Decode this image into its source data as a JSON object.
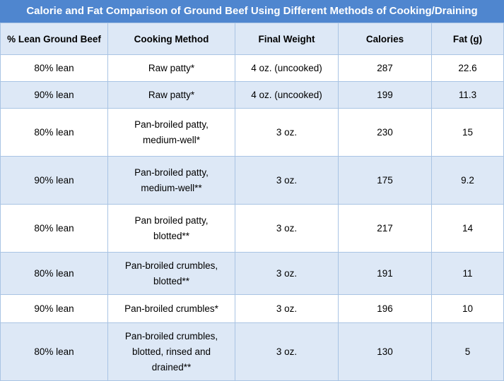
{
  "title": "Calorie and Fat Comparison of Ground Beef Using Different Methods of Cooking/Draining",
  "headers": [
    "% Lean Ground Beef",
    "Cooking Method",
    "Final Weight",
    "Calories",
    "Fat (g)"
  ],
  "rows": [
    {
      "lean": "80% lean",
      "method": [
        "Raw patty*"
      ],
      "weight": "4 oz. (uncooked)",
      "calories": "287",
      "fat": "22.6"
    },
    {
      "lean": "90% lean",
      "method": [
        "Raw patty*"
      ],
      "weight": "4 oz. (uncooked)",
      "calories": "199",
      "fat": "11.3"
    },
    {
      "lean": "80% lean",
      "method": [
        "Pan-broiled patty,",
        "medium-well*"
      ],
      "weight": "3 oz.",
      "calories": "230",
      "fat": "15"
    },
    {
      "lean": "90% lean",
      "method": [
        "Pan-broiled patty,",
        "medium-well**"
      ],
      "weight": "3 oz.",
      "calories": "175",
      "fat": "9.2"
    },
    {
      "lean": "80% lean",
      "method": [
        "Pan broiled patty,",
        "blotted**"
      ],
      "weight": "3 oz.",
      "calories": "217",
      "fat": "14"
    },
    {
      "lean": "80% lean",
      "method": [
        "Pan-broiled crumbles,",
        "blotted**"
      ],
      "weight": "3 oz.",
      "calories": "191",
      "fat": "11"
    },
    {
      "lean": "90% lean",
      "method": [
        "Pan-broiled crumbles*"
      ],
      "weight": "3 oz.",
      "calories": "196",
      "fat": "10"
    },
    {
      "lean": "80% lean",
      "method": [
        "Pan-broiled crumbles,",
        "blotted, rinsed and",
        "drained**"
      ],
      "weight": "3 oz.",
      "calories": "130",
      "fat": "5"
    }
  ]
}
